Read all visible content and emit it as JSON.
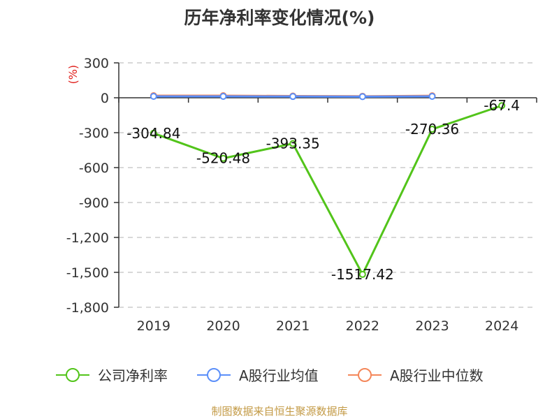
{
  "title": "历年净利率变化情况(%)",
  "footer": "制图数据来自恒生聚源数据库",
  "chart_data": {
    "type": "line",
    "title": "历年净利率变化情况(%)",
    "ylabel": "(%)",
    "xlabel": "",
    "ylim": [
      -1800,
      300
    ],
    "yticks": [
      300,
      0,
      -300,
      -600,
      -900,
      -1200,
      -1500,
      -1800
    ],
    "ytick_labels": [
      "300",
      "0",
      "-300",
      "-600",
      "-900",
      "-1,200",
      "-1,500",
      "-1,800"
    ],
    "categories": [
      "2019",
      "2020",
      "2021",
      "2022",
      "2023",
      "2024"
    ],
    "grid": true,
    "legend_position": "bottom",
    "series": [
      {
        "name": "公司净利率",
        "color": "#52c41a",
        "values": [
          -304.84,
          -520.48,
          -393.35,
          -1517.42,
          -270.36,
          -67.4
        ],
        "labels": [
          "-304.84",
          "-520.48",
          "-393.35",
          "-1517.42",
          "-270.36",
          "-67.4"
        ]
      },
      {
        "name": "A股行业均值",
        "color": "#5b8ff9",
        "values": [
          12,
          12,
          11,
          10,
          12,
          null
        ]
      },
      {
        "name": "A股行业中位数",
        "color": "#f4875a",
        "values": [
          18,
          18,
          15,
          13,
          17,
          null
        ]
      }
    ]
  }
}
